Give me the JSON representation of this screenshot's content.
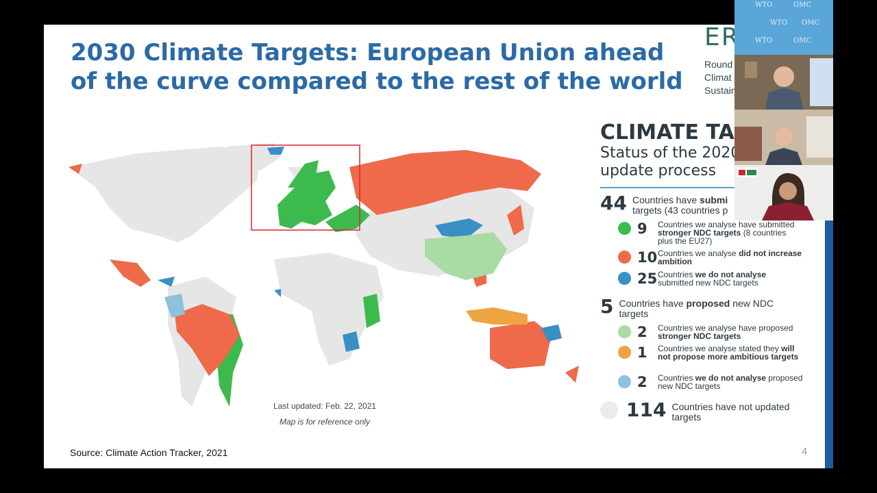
{
  "slide": {
    "title": "2030 Climate Targets: European Union ahead of the curve compared to the rest of the world",
    "source": "Source: Climate Action Tracker, 2021",
    "page_number": "4",
    "map_updated": "Last updated: Feb. 22, 2021",
    "map_note": "Map is for reference only"
  },
  "logo": {
    "letters": "ER",
    "line1": "Round",
    "line2": "Climat",
    "line3": "Sustain"
  },
  "panel": {
    "heading": "CLIMATE TAI",
    "subheading": "Status of the 2020 update process",
    "submitted": {
      "number": "44",
      "text_a": "Countries have ",
      "text_b": "submi",
      "text_c": "targets (43 countries p"
    },
    "submitted_items": [
      {
        "number": "9",
        "color": "#3dba4e",
        "pre": "Countries we analyse have submitted ",
        "bold": "stronger NDC targets",
        "post": " (8 countries plus the EU27)"
      },
      {
        "number": "10",
        "color": "#ee6a4a",
        "pre": "Countries we analyse ",
        "bold": "did not increase ambition",
        "post": ""
      },
      {
        "number": "25",
        "color": "#3a8fc4",
        "pre": "Countries ",
        "bold": "we do not analyse",
        "post": " submitted new NDC targets"
      }
    ],
    "proposed": {
      "number": "5",
      "text_a": "Countries have ",
      "text_b": "proposed",
      "text_c": " new NDC targets"
    },
    "proposed_items": [
      {
        "number": "2",
        "color": "#a8dca4",
        "pre": "Countries we analyse have proposed ",
        "bold": "stronger NDC targets",
        "post": ""
      },
      {
        "number": "1",
        "color": "#eea441",
        "pre": "Countries we analyse stated they ",
        "bold": "will not propose more ambitious targets",
        "post": ""
      },
      {
        "number": "2",
        "color": "#8fc0dc",
        "pre": "Countries ",
        "bold": "we do not analyse",
        "post": " proposed new NDC targets"
      }
    ],
    "not_updated": {
      "number": "114",
      "color": "#ebebec",
      "text": "Countries have not updated targets"
    }
  },
  "video": {
    "wto_labels": [
      "WTO",
      "OMC",
      "WTO",
      "OMC",
      "WTO",
      "OMC"
    ]
  },
  "colors": {
    "title": "#2b6aa6",
    "stronger": "#3dba4e",
    "no_increase": "#ee6a4a",
    "not_analysed": "#3a8fc4",
    "proposed_stronger": "#a8dca4",
    "not_propose": "#eea441",
    "proposed_not_analysed": "#8fc0dc",
    "not_updated": "#ebebec",
    "highlight_box": "#e0222b"
  }
}
